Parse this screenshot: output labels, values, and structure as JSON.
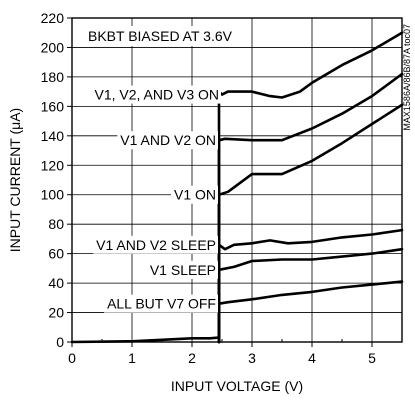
{
  "chart_data": {
    "type": "line",
    "title": "",
    "xlabel": "INPUT VOLTAGE (V)",
    "ylabel": "INPUT CURRENT (μA)",
    "xlim": [
      0,
      5.5
    ],
    "ylim": [
      0,
      220
    ],
    "xticks": [
      0,
      1,
      2,
      3,
      4,
      5
    ],
    "yticks": [
      0,
      20,
      40,
      60,
      80,
      100,
      120,
      140,
      160,
      180,
      200,
      220
    ],
    "grid": true,
    "watermark": "MAX1586A/86B/87A toc07",
    "annotation": "BKBT BIASED AT 3.6V",
    "series": [
      {
        "name": "V1, V2, AND V3 ON",
        "label_at": [
          2.5,
          168
        ],
        "points": [
          [
            2.45,
            0
          ],
          [
            2.45,
            170
          ],
          [
            2.5,
            168
          ],
          [
            2.6,
            170
          ],
          [
            3.0,
            170
          ],
          [
            3.3,
            167
          ],
          [
            3.5,
            166
          ],
          [
            3.8,
            170
          ],
          [
            4.0,
            176
          ],
          [
            4.5,
            188
          ],
          [
            5.0,
            198
          ],
          [
            5.5,
            210
          ]
        ]
      },
      {
        "name": "V1 AND V2 ON",
        "label_at": [
          2.45,
          137
        ],
        "points": [
          [
            2.45,
            0
          ],
          [
            2.45,
            137
          ],
          [
            2.55,
            138
          ],
          [
            3.0,
            137
          ],
          [
            3.5,
            137
          ],
          [
            4.0,
            145
          ],
          [
            4.5,
            155
          ],
          [
            5.0,
            167
          ],
          [
            5.5,
            182
          ]
        ]
      },
      {
        "name": "V1 ON",
        "label_at": [
          2.45,
          100
        ],
        "points": [
          [
            2.45,
            0
          ],
          [
            2.45,
            100
          ],
          [
            2.6,
            102
          ],
          [
            3.0,
            114
          ],
          [
            3.5,
            114
          ],
          [
            4.0,
            123
          ],
          [
            4.5,
            135
          ],
          [
            5.0,
            148
          ],
          [
            5.5,
            161
          ]
        ]
      },
      {
        "name": "V1 AND V2 SLEEP",
        "label_at": [
          2.45,
          66
        ],
        "points": [
          [
            2.45,
            0
          ],
          [
            2.45,
            66
          ],
          [
            2.55,
            63
          ],
          [
            2.7,
            66
          ],
          [
            3.0,
            67
          ],
          [
            3.3,
            69
          ],
          [
            3.6,
            67
          ],
          [
            4.0,
            68
          ],
          [
            4.5,
            71
          ],
          [
            5.0,
            73
          ],
          [
            5.5,
            76
          ]
        ]
      },
      {
        "name": "V1 SLEEP",
        "label_at": [
          2.45,
          49
        ],
        "points": [
          [
            2.45,
            0
          ],
          [
            2.45,
            49
          ],
          [
            2.7,
            51
          ],
          [
            3.0,
            55
          ],
          [
            3.5,
            56
          ],
          [
            4.0,
            56
          ],
          [
            4.5,
            58
          ],
          [
            5.0,
            60
          ],
          [
            5.5,
            63
          ]
        ]
      },
      {
        "name": "ALL BUT V7 OFF",
        "label_at": [
          2.45,
          26
        ],
        "points": [
          [
            0,
            0
          ],
          [
            1.0,
            0.5
          ],
          [
            1.5,
            1.5
          ],
          [
            2.0,
            2.5
          ],
          [
            2.3,
            2.5
          ],
          [
            2.45,
            3
          ],
          [
            2.45,
            26
          ],
          [
            2.6,
            27
          ],
          [
            3.0,
            29
          ],
          [
            3.5,
            32
          ],
          [
            4.0,
            34
          ],
          [
            4.5,
            37
          ],
          [
            5.0,
            39
          ],
          [
            5.5,
            41
          ]
        ]
      }
    ]
  }
}
